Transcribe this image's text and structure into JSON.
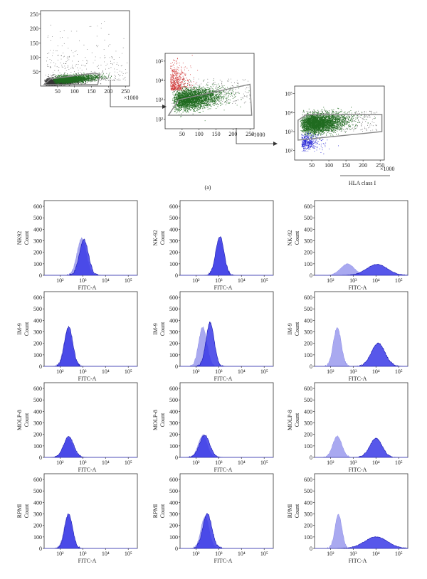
{
  "figure": {
    "caption_a": "(a)",
    "colors": {
      "black_events": "#333333",
      "green_events": "#1f6b1f",
      "red_events": "#d23a3a",
      "blue_events": "#2b2bd6",
      "histogram_dark": "#3a3ae6",
      "histogram_light": "#a9a9f0"
    }
  },
  "chart_data": [
    {
      "type": "scatter",
      "id": "dot-1",
      "x_ticks": [
        "50",
        "100",
        "150",
        "200",
        "250"
      ],
      "y_ticks": [
        "50",
        "100",
        "150",
        "200",
        "250"
      ],
      "x_multiplier": "×1000",
      "xlim": [
        0,
        262
      ],
      "ylim": [
        0,
        262
      ],
      "gate_polygon": [
        [
          10,
          5
        ],
        [
          30,
          25
        ],
        [
          160,
          45
        ],
        [
          175,
          40
        ],
        [
          168,
          5
        ]
      ]
    },
    {
      "type": "scatter",
      "id": "dot-2",
      "x_ticks": [
        "50",
        "100",
        "150",
        "200",
        "250"
      ],
      "y_ticks": [
        "10²",
        "10³",
        "10⁴",
        "10⁵"
      ],
      "x_multiplier": "×1000",
      "xlim": [
        0,
        262
      ],
      "ylim_log10": [
        1.5,
        5.4
      ],
      "gate_polygon": [
        [
          10,
          2.2
        ],
        [
          40,
          3.0
        ],
        [
          250,
          3.8
        ],
        [
          255,
          2.2
        ]
      ]
    },
    {
      "type": "scatter",
      "id": "dot-3",
      "x_ticks": [
        "50",
        "100",
        "150",
        "200",
        "250"
      ],
      "y_ticks": [
        "10²",
        "10³",
        "10⁴",
        "10⁵"
      ],
      "x_multiplier": "×1000",
      "x_axis_label": "HLA class I",
      "xlim": [
        0,
        262
      ],
      "ylim_log10": [
        1.5,
        5.4
      ],
      "gate_polygon": [
        [
          10,
          2.55
        ],
        [
          10,
          3.6
        ],
        [
          35,
          3.9
        ],
        [
          255,
          3.9
        ],
        [
          255,
          3.0
        ]
      ]
    },
    {
      "type": "histogram_grid",
      "x_axis_label": "FITC-A",
      "y_axis_label": "Count",
      "x_ticks": [
        "10²",
        "10³",
        "10⁴",
        "10⁵"
      ],
      "x_tick_exponents": [
        2,
        3,
        4,
        5
      ],
      "xlim_log10": [
        1.3,
        5.4
      ],
      "y_ticks": [
        "0",
        "100",
        "200",
        "300",
        "400",
        "500",
        "600"
      ],
      "ylim": [
        0,
        650
      ],
      "rows": [
        {
          "label": "NK92",
          "panels": [
            {
              "row_label": "NK92",
              "light": {
                "mu": 2.95,
                "sd": 0.2,
                "peak": 320
              },
              "dark": {
                "mu": 3.05,
                "sd": 0.2,
                "peak": 310
              }
            },
            {
              "row_label": "NK-92",
              "light": {
                "mu": 3.05,
                "sd": 0.18,
                "peak": 300
              },
              "dark": {
                "mu": 3.05,
                "sd": 0.18,
                "peak": 340
              }
            },
            {
              "row_label": "NK-92",
              "light": {
                "mu": 2.75,
                "sd": 0.3,
                "peak": 100
              },
              "dark": {
                "mu": 4.05,
                "sd": 0.45,
                "peak": 95
              }
            }
          ]
        },
        {
          "label": "IM-9",
          "panels": [
            {
              "row_label": "IM-9",
              "light": {
                "mu": 2.35,
                "sd": 0.18,
                "peak": 320
              },
              "dark": {
                "mu": 2.38,
                "sd": 0.18,
                "peak": 345
              }
            },
            {
              "row_label": "IM-9",
              "light": {
                "mu": 2.3,
                "sd": 0.18,
                "peak": 340
              },
              "dark": {
                "mu": 2.62,
                "sd": 0.18,
                "peak": 380
              }
            },
            {
              "row_label": "IM-9",
              "light": {
                "mu": 2.3,
                "sd": 0.17,
                "peak": 340
              },
              "dark": {
                "mu": 4.1,
                "sd": 0.3,
                "peak": 200
              }
            }
          ]
        },
        {
          "label": "MOLP-8",
          "panels": [
            {
              "row_label": "MOLP-8",
              "light": {
                "mu": 2.35,
                "sd": 0.2,
                "peak": 165
              },
              "dark": {
                "mu": 2.38,
                "sd": 0.22,
                "peak": 180
              }
            },
            {
              "row_label": "MOLP-8",
              "light": {
                "mu": 2.3,
                "sd": 0.2,
                "peak": 190
              },
              "dark": {
                "mu": 2.38,
                "sd": 0.22,
                "peak": 195
              }
            },
            {
              "row_label": "MOLP-8",
              "light": {
                "mu": 2.3,
                "sd": 0.2,
                "peak": 185
              },
              "dark": {
                "mu": 4.0,
                "sd": 0.27,
                "peak": 165
              }
            }
          ]
        },
        {
          "label": "RPMI",
          "panels": [
            {
              "row_label": "RPMI",
              "light": {
                "mu": 2.35,
                "sd": 0.17,
                "peak": 290
              },
              "dark": {
                "mu": 2.38,
                "sd": 0.17,
                "peak": 300
              }
            },
            {
              "row_label": "RPMI",
              "light": {
                "mu": 2.4,
                "sd": 0.18,
                "peak": 280
              },
              "dark": {
                "mu": 2.5,
                "sd": 0.2,
                "peak": 300
              }
            },
            {
              "row_label": "RPMI",
              "light": {
                "mu": 2.35,
                "sd": 0.15,
                "peak": 295
              },
              "dark": {
                "mu": 4.0,
                "sd": 0.5,
                "peak": 100
              }
            }
          ]
        }
      ]
    }
  ]
}
